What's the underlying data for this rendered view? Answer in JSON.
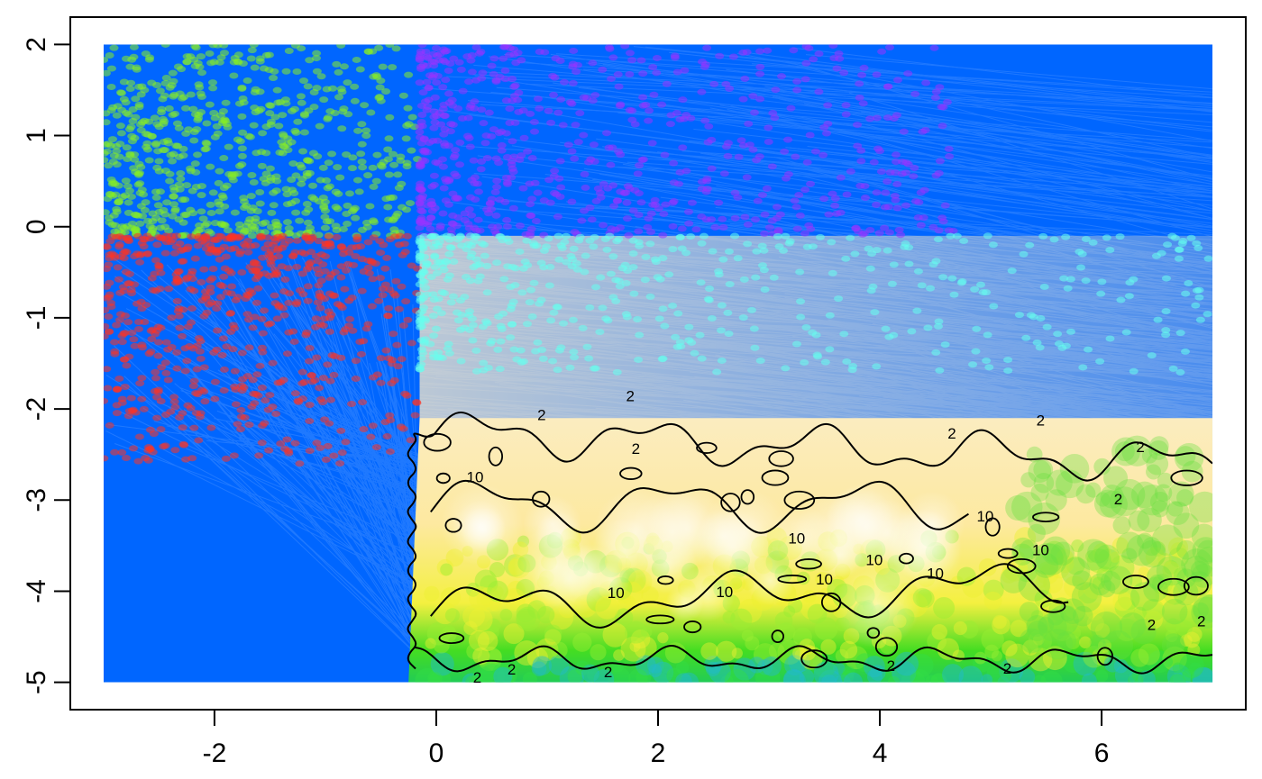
{
  "chart_data": {
    "type": "heatmap",
    "title": "",
    "xlabel": "",
    "ylabel": "",
    "xlim": [
      -3.3,
      7.3
    ],
    "ylim": [
      -5.3,
      2.3
    ],
    "x_ticks": [
      {
        "value": -2,
        "label": "-2"
      },
      {
        "value": 0,
        "label": "0"
      },
      {
        "value": 2,
        "label": "2"
      },
      {
        "value": 4,
        "label": "4"
      },
      {
        "value": 6,
        "label": "6"
      }
    ],
    "y_ticks": [
      {
        "value": 2,
        "label": "2"
      },
      {
        "value": 1,
        "label": "1"
      },
      {
        "value": 0,
        "label": "0"
      },
      {
        "value": -1,
        "label": "-1"
      },
      {
        "value": -2,
        "label": "-2"
      },
      {
        "value": -3,
        "label": "-3"
      },
      {
        "value": -4,
        "label": "-4"
      },
      {
        "value": -5,
        "label": "-5"
      }
    ],
    "heatmap_extent": {
      "x": [
        -3,
        7
      ],
      "y": [
        -5,
        2
      ]
    },
    "background_color": "#0066ff",
    "grid": false,
    "point_groups": [
      {
        "color": "#88ee22",
        "x_range": [
          -3,
          -0.15
        ],
        "y_range": [
          -0.1,
          2
        ]
      },
      {
        "color": "#9933ff",
        "x_range": [
          -0.15,
          4.7
        ],
        "y_range": [
          -0.1,
          2
        ]
      },
      {
        "color": "#ff3322",
        "x_range": [
          -3,
          -0.15
        ],
        "y_range": [
          -2.6,
          -0.1
        ]
      },
      {
        "color": "#66ffee",
        "x_range": [
          -0.15,
          7
        ],
        "y_range": [
          -1.6,
          -0.1
        ]
      }
    ],
    "contour_levels": [
      {
        "level": 2,
        "label": "2"
      },
      {
        "level": 10,
        "label": "10"
      }
    ],
    "contour_labels": [
      {
        "text": "2",
        "x": 1.75,
        "y": -1.87
      },
      {
        "text": "2",
        "x": 0.95,
        "y": -2.08
      },
      {
        "text": "2",
        "x": 1.8,
        "y": -2.45
      },
      {
        "text": "2",
        "x": 4.65,
        "y": -2.28
      },
      {
        "text": "2",
        "x": 5.45,
        "y": -2.14
      },
      {
        "text": "2",
        "x": 6.35,
        "y": -2.43
      },
      {
        "text": "2",
        "x": 6.15,
        "y": -3.0
      },
      {
        "text": "2",
        "x": 6.45,
        "y": -4.38
      },
      {
        "text": "2",
        "x": 6.9,
        "y": -4.34
      },
      {
        "text": "2",
        "x": 0.37,
        "y": -4.96
      },
      {
        "text": "2",
        "x": 0.68,
        "y": -4.87
      },
      {
        "text": "2",
        "x": 1.55,
        "y": -4.9
      },
      {
        "text": "2",
        "x": 4.1,
        "y": -4.83
      },
      {
        "text": "2",
        "x": 5.15,
        "y": -4.86
      },
      {
        "text": "10",
        "x": 0.35,
        "y": -2.76
      },
      {
        "text": "10",
        "x": 4.95,
        "y": -3.19
      },
      {
        "text": "10",
        "x": 3.25,
        "y": -3.43
      },
      {
        "text": "10",
        "x": 5.45,
        "y": -3.56
      },
      {
        "text": "10",
        "x": 3.95,
        "y": -3.67
      },
      {
        "text": "10",
        "x": 4.5,
        "y": -3.82
      },
      {
        "text": "10",
        "x": 3.5,
        "y": -3.88
      },
      {
        "text": "10",
        "x": 1.62,
        "y": -4.03
      },
      {
        "text": "10",
        "x": 2.6,
        "y": -4.02
      }
    ]
  }
}
